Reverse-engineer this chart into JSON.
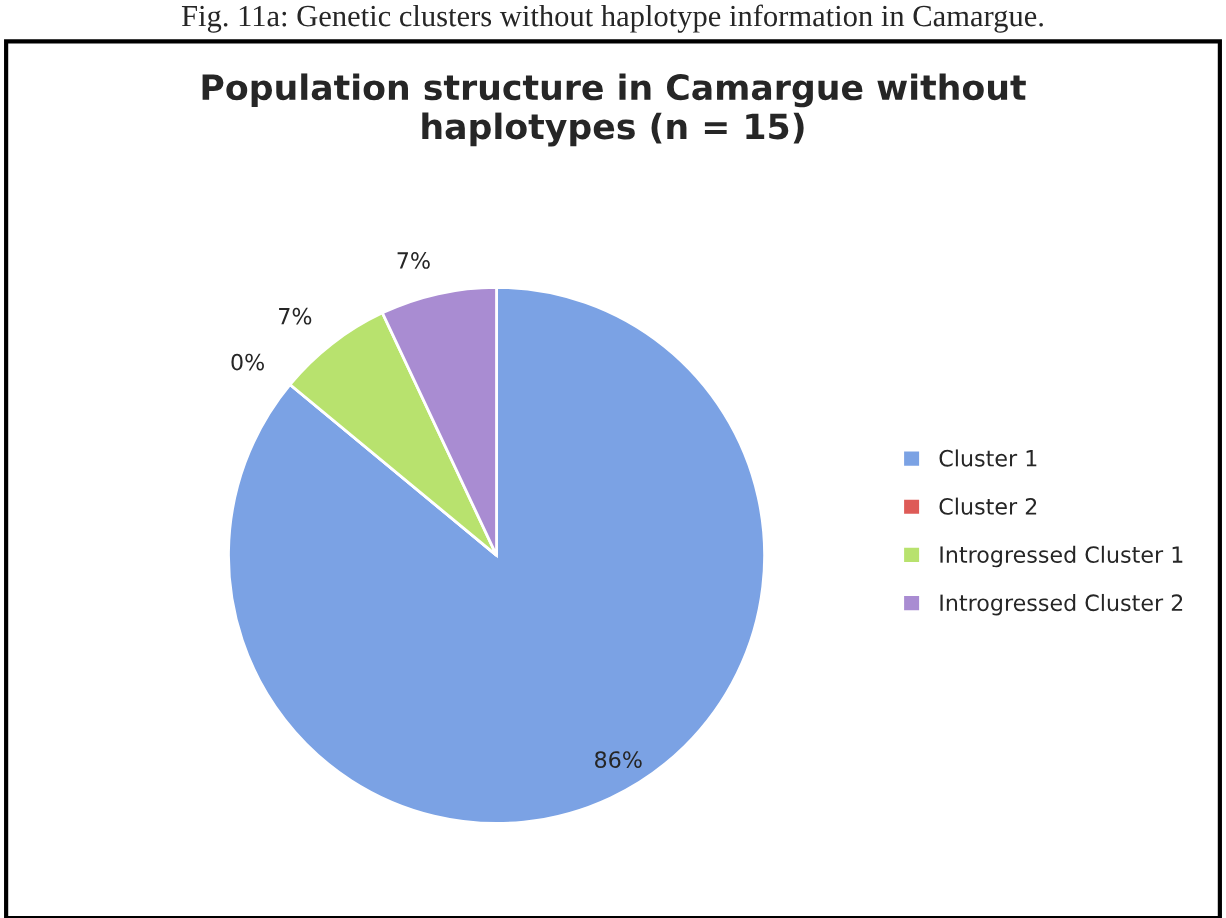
{
  "chart_data": {
    "type": "pie",
    "title": "Population structure in Camargue without\nhaplotypes (n = 15)",
    "annotations": [
      "Fig. 11a: Genetic clusters without haplotype information in Camargue."
    ],
    "categories": [
      "Cluster 1",
      "Cluster 2",
      "Introgressed Cluster 1",
      "Introgressed Cluster 2"
    ],
    "values": [
      86,
      0,
      7,
      7
    ],
    "colors": [
      "#7ba2e4",
      "#de5b57",
      "#b8e26e",
      "#a98cd2"
    ],
    "value_labels": [
      "86%",
      "0%",
      "7%",
      "7%"
    ],
    "legend": "right"
  }
}
